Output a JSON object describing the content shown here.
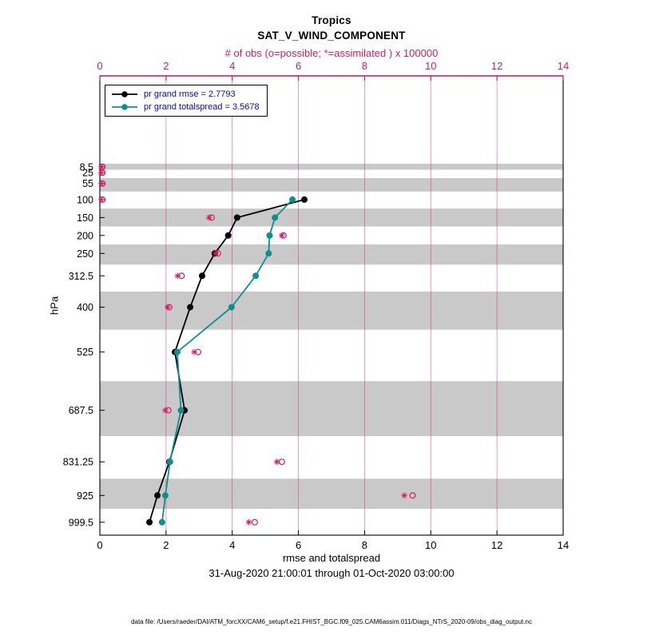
{
  "chart_data": {
    "type": "line",
    "title": "Tropics",
    "subtitle": "SAT_V_WIND_COMPONENT",
    "top_axis_label": "# of obs (o=possible; *=assimilated ) x 100000",
    "xlabel": "rmse and totalspread",
    "ylabel": "hPa",
    "caption": "31-Aug-2020 21:00:01 through 01-Oct-2020 03:00:00",
    "footnote": "data file: /Users/raeder/DAI/ATM_forcXX/CAM6_setup/f.e21.FHIST_BGC.f09_025.CAM6assim.011/Diags_NTrS_2020-09/obs_diag_output.nc",
    "xlim": [
      0,
      14
    ],
    "x_ticks": [
      0,
      2,
      4,
      6,
      8,
      10,
      12,
      14
    ],
    "levels": [
      8.5,
      25,
      55,
      100,
      150,
      200,
      250,
      312.5,
      400,
      525,
      687.5,
      831.25,
      925,
      999.5
    ],
    "series": [
      {
        "id": "rmse",
        "name": "pr grand rmse = 2.7793",
        "grand_value": 2.7793,
        "color": "#000000",
        "values": [
          null,
          null,
          null,
          6.18,
          4.15,
          3.88,
          3.47,
          3.09,
          2.73,
          2.27,
          2.56,
          2.1,
          1.74,
          1.5
        ]
      },
      {
        "id": "totalspread",
        "name": "pr grand totalspread = 3.5678",
        "grand_value": 3.5678,
        "color": "#0c8f8f",
        "values": [
          null,
          null,
          null,
          5.82,
          5.29,
          5.13,
          5.1,
          4.71,
          3.98,
          2.34,
          2.45,
          2.12,
          1.98,
          1.88
        ]
      }
    ],
    "obs_counts_x100000": {
      "possible": [
        0.08,
        0.08,
        0.08,
        0.08,
        3.38,
        5.55,
        3.57,
        2.47,
        2.1,
        2.97,
        2.07,
        5.5,
        9.45,
        4.68
      ],
      "assimilated": [
        0.04,
        0.04,
        0.04,
        0.04,
        3.3,
        5.5,
        3.5,
        2.35,
        2.05,
        2.85,
        1.98,
        5.35,
        9.2,
        4.5
      ]
    },
    "colors": {
      "obs": "#d81b60",
      "band": "#c9c9c9",
      "legend_text": "#0000ee"
    },
    "legend_position": "top-left",
    "grid": "vertical-obs-gridlines"
  }
}
